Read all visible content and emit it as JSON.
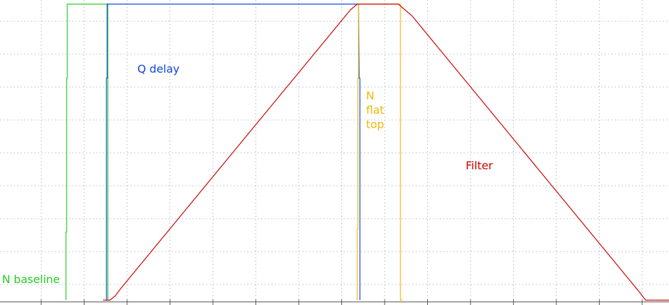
{
  "chart_data": {
    "type": "line",
    "title": "",
    "xlabel": "",
    "ylabel": "",
    "xlim": [
      0,
      974
    ],
    "ylim": [
      0,
      1
    ],
    "grid": true,
    "series": [
      {
        "name": "N baseline",
        "color": "#22cc22",
        "points": [
          [
            96,
            0
          ],
          [
            96,
            0.23
          ],
          [
            97,
            0.23
          ],
          [
            97,
            0.75
          ],
          [
            98,
            0.75
          ],
          [
            98,
            1
          ],
          [
            157,
            1
          ],
          [
            157,
            0
          ],
          [
            160,
            0
          ]
        ]
      },
      {
        "name": "Q delay",
        "color": "#1144dd",
        "points": [
          [
            155,
            0
          ],
          [
            155,
            0.75
          ],
          [
            156,
            0.75
          ],
          [
            156,
            1
          ],
          [
            522,
            1
          ],
          [
            523,
            0.75
          ],
          [
            524,
            0.75
          ],
          [
            524,
            0
          ]
        ]
      },
      {
        "name": "N flat top",
        "color": "#f0b800",
        "points": [
          [
            520,
            0
          ],
          [
            520,
            0.24
          ],
          [
            521,
            0.24
          ],
          [
            521,
            0.75
          ],
          [
            522,
            0.75
          ],
          [
            522,
            1
          ],
          [
            583,
            1
          ],
          [
            583,
            0
          ],
          [
            586,
            0
          ]
        ]
      },
      {
        "name": "Filter",
        "color": "#cc0000",
        "points": [
          [
            150,
            0
          ],
          [
            160,
            0
          ],
          [
            168,
            0.015
          ],
          [
            176,
            0.04
          ],
          [
            510,
            0.98
          ],
          [
            520,
            1
          ],
          [
            580,
            1
          ],
          [
            600,
            0.96
          ],
          [
            930,
            0.03
          ],
          [
            940,
            0
          ],
          [
            974,
            0
          ]
        ]
      }
    ],
    "annotations": [
      {
        "series": 1,
        "text": "Q delay"
      },
      {
        "series": 2,
        "text": "N\nflat\ntop"
      },
      {
        "series": 3,
        "text": "Filter"
      },
      {
        "series": 0,
        "text": "N baseline"
      }
    ]
  },
  "colors": {
    "grid": "#c8c8c8",
    "axis": "#555555",
    "background": "#ffffff"
  }
}
